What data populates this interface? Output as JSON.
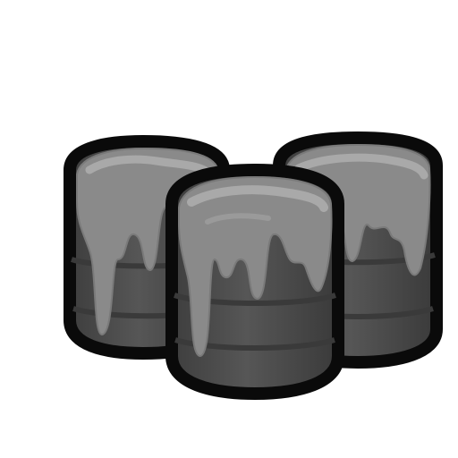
{
  "scene": {
    "subject": "barrels-icon",
    "colors": {
      "background": "#ffffff",
      "outline": "#0a0a0a",
      "barrel_body": "#4a4a4a",
      "barrel_band": "#3c3c3c",
      "goo": "#8a8a8a",
      "goo_highlight": "#a9a9a9"
    }
  }
}
